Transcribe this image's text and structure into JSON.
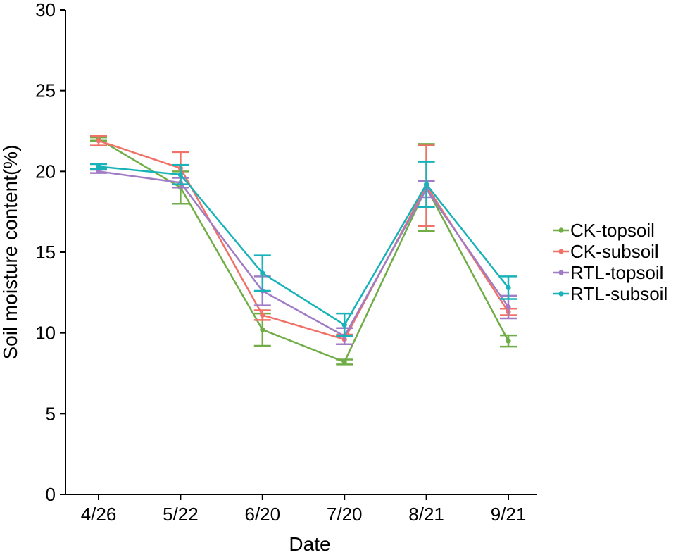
{
  "chart_data": {
    "type": "line",
    "title": "",
    "xlabel": "Date",
    "ylabel": "Soil moisture content(%)",
    "categories": [
      "4/26",
      "5/22",
      "6/20",
      "7/20",
      "8/21",
      "9/21"
    ],
    "ylim": [
      0,
      30
    ],
    "yticks": [
      0,
      5,
      10,
      15,
      20,
      25,
      30
    ],
    "grid": false,
    "legend_position": "right",
    "series": [
      {
        "name": "CK-topsoil",
        "color": "#70ad47",
        "values": [
          22.0,
          19.0,
          10.2,
          8.2,
          19.0,
          9.5
        ],
        "errors": [
          0.1,
          1.0,
          1.0,
          0.15,
          2.7,
          0.35
        ]
      },
      {
        "name": "CK-subsoil",
        "color": "#f07167",
        "values": [
          21.9,
          20.2,
          11.1,
          9.6,
          19.1,
          11.3
        ],
        "errors": [
          0.3,
          1.0,
          0.3,
          0.3,
          2.5,
          0.2
        ]
      },
      {
        "name": "RTL-topsoil",
        "color": "#a07cc5",
        "values": [
          20.0,
          19.3,
          12.6,
          9.8,
          18.9,
          11.6
        ],
        "errors": [
          0.1,
          0.3,
          0.9,
          0.5,
          0.5,
          0.7
        ]
      },
      {
        "name": "RTL-subsoil",
        "color": "#17b3b8",
        "values": [
          20.3,
          19.8,
          13.7,
          10.5,
          19.2,
          12.8
        ],
        "errors": [
          0.15,
          0.6,
          1.1,
          0.7,
          1.4,
          0.7
        ]
      }
    ]
  }
}
